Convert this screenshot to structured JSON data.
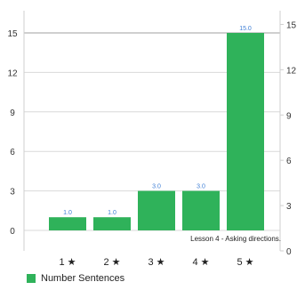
{
  "colors": {
    "bar": "#2fb25a",
    "value_label": "#3f7fd6",
    "grid": "#d9d9d9",
    "axis_text": "#333333"
  },
  "chart_data": {
    "type": "bar",
    "categories": [
      "1 ★",
      "2 ★",
      "3 ★",
      "4 ★",
      "5 ★"
    ],
    "series": [
      {
        "name": "Number Sentences",
        "values": [
          1.0,
          1.0,
          3.0,
          3.0,
          15.0
        ]
      }
    ],
    "data_labels": [
      "1.0",
      "1.0",
      "3.0",
      "3.0",
      "15.0"
    ],
    "left_axis": {
      "ylim": [
        -1,
        16
      ],
      "ticks": [
        0,
        3,
        6,
        9,
        12,
        15
      ]
    },
    "right_axis": {
      "ylim": [
        0,
        16
      ],
      "ticks": [
        0,
        3,
        6,
        9,
        12,
        15
      ]
    },
    "annotation": "Lesson 4 - Asking directions.",
    "grid": true,
    "legend_position": "bottom-left"
  }
}
